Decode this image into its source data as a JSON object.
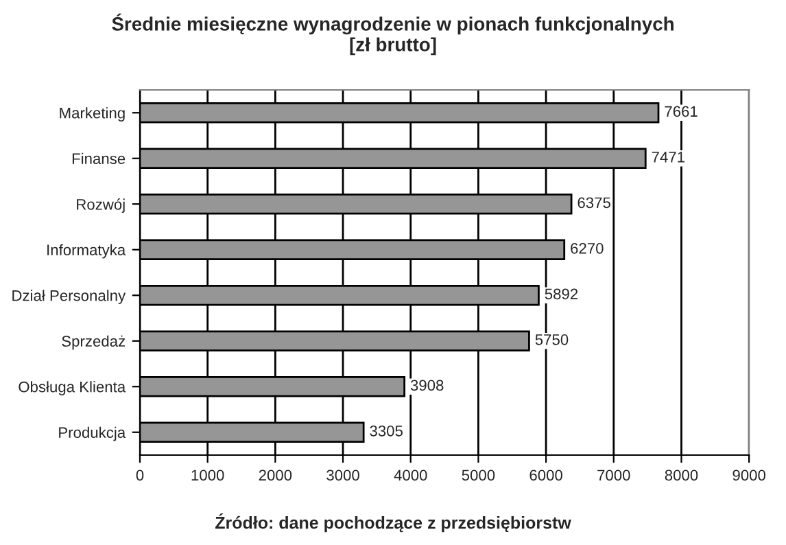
{
  "chart_data": {
    "type": "bar",
    "orientation": "horizontal",
    "title": "Średnie miesięczne wynagrodzenie w pionach funkcjonalnych\n[zł brutto]",
    "categories": [
      "Marketing",
      "Finanse",
      "Rozwój",
      "Informatyka",
      "Dział Personalny",
      "Sprzedaż",
      "Obsługa Klienta",
      "Produkcja"
    ],
    "values": [
      7661,
      7471,
      6375,
      6270,
      5892,
      5750,
      3908,
      3305
    ],
    "color": "#969696",
    "data_labels": true,
    "grid": "x",
    "xlim": [
      0,
      9000
    ],
    "xticks": [
      0,
      1000,
      2000,
      3000,
      4000,
      5000,
      6000,
      7000,
      8000,
      9000
    ],
    "annotations": [
      "Źródło: dane pochodzące z przedsiębiorstw"
    ]
  }
}
